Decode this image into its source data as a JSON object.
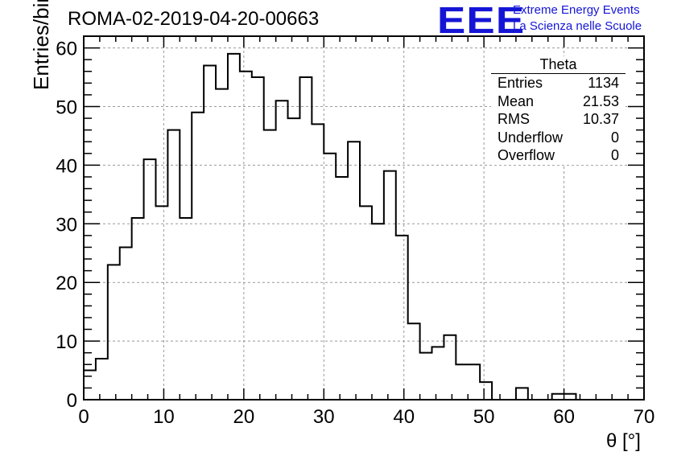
{
  "header": {
    "title": "ROMA-02-2019-04-20-00663",
    "logo_text": "EEE",
    "logo_line1": "Extreme Energy Events",
    "logo_line2": "La Scienza nelle Scuole"
  },
  "stats": {
    "title": "Theta",
    "rows": [
      {
        "label": "Entries",
        "value": "1134"
      },
      {
        "label": "Mean",
        "value": "21.53"
      },
      {
        "label": "RMS",
        "value": "10.37"
      },
      {
        "label": "Underflow",
        "value": "0"
      },
      {
        "label": "Overflow",
        "value": "0"
      }
    ]
  },
  "colors": {
    "line": "#000000",
    "grid": "#999999",
    "logo": "#1515d6"
  },
  "chart_data": {
    "type": "bar",
    "style": "step histogram",
    "xlabel": "θ [°]",
    "ylabel": "Entries/bin",
    "xlim": [
      0,
      70
    ],
    "ylim": [
      0,
      62
    ],
    "grid": true,
    "bin_edges_start": 0,
    "bin_width": 1.5,
    "x_ticks": [
      "0",
      "10",
      "20",
      "30",
      "40",
      "50",
      "60",
      "70"
    ],
    "y_ticks": [
      "0",
      "10",
      "20",
      "30",
      "40",
      "50",
      "60"
    ],
    "values": [
      5,
      7,
      23,
      26,
      31,
      41,
      33,
      46,
      31,
      49,
      57,
      53,
      59,
      56,
      55,
      46,
      51,
      48,
      55,
      47,
      42,
      38,
      44,
      33,
      30,
      39,
      28,
      13,
      8,
      9,
      11,
      6,
      6,
      3,
      0,
      0,
      2,
      0,
      0,
      1,
      1,
      0,
      0,
      0,
      0,
      0,
      0,
      0,
      0,
      0,
      0,
      0,
      0,
      0,
      0,
      0,
      0,
      0,
      0,
      0,
      0,
      0,
      0,
      0,
      0,
      0,
      0,
      0,
      0,
      0,
      0,
      0,
      0,
      0,
      0,
      0,
      0,
      0,
      0,
      0,
      0,
      0,
      0,
      0,
      0,
      0,
      0,
      0,
      0,
      0,
      0,
      0,
      0,
      0,
      0,
      0
    ]
  }
}
